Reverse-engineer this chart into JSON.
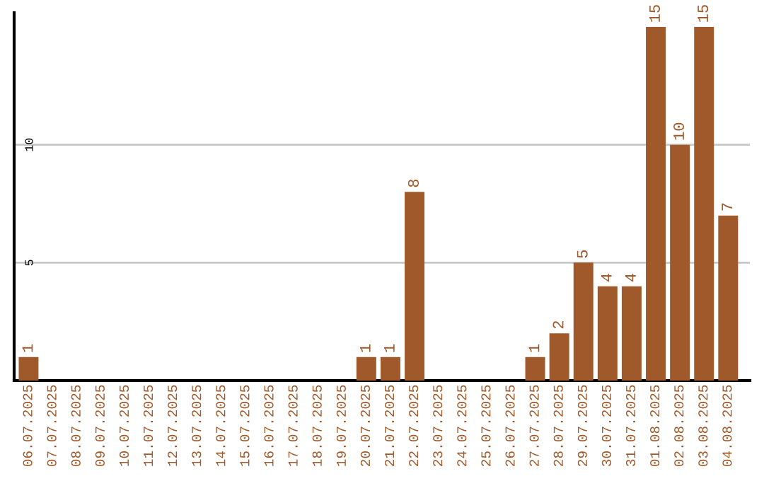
{
  "chart_data": {
    "type": "bar",
    "categories": [
      "06.07.2025",
      "07.07.2025",
      "08.07.2025",
      "09.07.2025",
      "10.07.2025",
      "11.07.2025",
      "12.07.2025",
      "13.07.2025",
      "14.07.2025",
      "15.07.2025",
      "16.07.2025",
      "17.07.2025",
      "18.07.2025",
      "19.07.2025",
      "20.07.2025",
      "21.07.2025",
      "22.07.2025",
      "23.07.2025",
      "24.07.2025",
      "25.07.2025",
      "26.07.2025",
      "27.07.2025",
      "28.07.2025",
      "29.07.2025",
      "30.07.2025",
      "31.07.2025",
      "01.08.2025",
      "02.08.2025",
      "03.08.2025",
      "04.08.2025"
    ],
    "values": [
      1,
      0,
      0,
      0,
      0,
      0,
      0,
      0,
      0,
      0,
      0,
      0,
      0,
      0,
      1,
      1,
      8,
      0,
      0,
      0,
      0,
      1,
      2,
      5,
      4,
      4,
      15,
      10,
      15,
      7
    ],
    "value_labels": [
      "1",
      null,
      null,
      null,
      null,
      null,
      null,
      null,
      null,
      null,
      null,
      null,
      null,
      null,
      "1",
      "1",
      "8",
      null,
      null,
      null,
      null,
      "1",
      "2",
      "5",
      "4",
      "4",
      "15",
      "10",
      "15",
      "7"
    ],
    "color": "#a0592a",
    "ylim": [
      0,
      15.6
    ],
    "yticks": [
      5,
      10
    ],
    "grid": "y"
  }
}
